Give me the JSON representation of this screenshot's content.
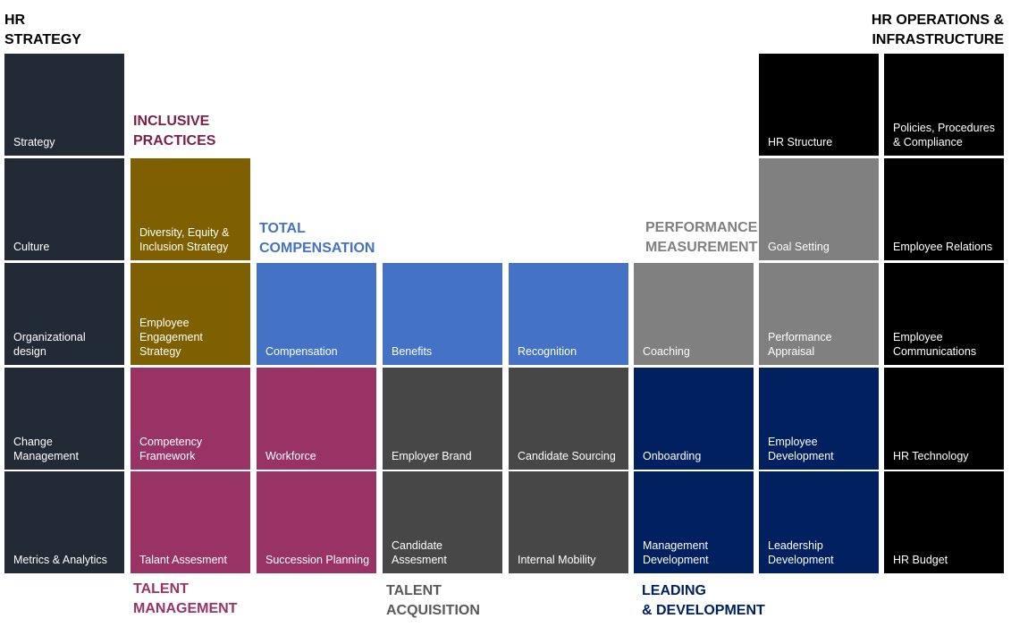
{
  "headers": {
    "hr_strategy": "HR\nSTRATEGY",
    "hr_operations": "HR OPERATIONS &\nINFRASTRUCTURE",
    "inclusive_practices": "INCLUSIVE\nPRACTICES",
    "total_compensation": "TOTAL\nCOMPENSATION",
    "performance_measurement": "PERFORMANCE\nMEASUREMENT",
    "talent_management": "TALENT\nMANAGEMENT",
    "talent_acquisition": "TALENT\nACQUISITION",
    "leading_development": "LEADING\n& DEVELOPMENT"
  },
  "colors": {
    "hr_strategy_header": "#000000",
    "hr_operations_header": "#000000",
    "inclusive_practices_header": "#7b1f4a",
    "total_compensation_header": "#4472c4",
    "performance_measurement_header": "#808080",
    "talent_management_header": "#993366",
    "talent_acquisition_header": "#595959",
    "leading_development_header": "#002060"
  },
  "tiles": {
    "strategy": "Strategy",
    "culture": "Culture",
    "organizational_design": "Organizational\ndesign",
    "change_management": "Change\nManagement",
    "metrics_analytics": "Metrics & Analytics",
    "dei_strategy": "Diversity, Equity &\nInclusion Strategy",
    "employee_engagement": "Employee\nEngagement\nStrategy",
    "competency_framework": "Competency\nFramework",
    "talant_assesment": "Talant Assesment",
    "compensation": "Compensation",
    "workforce": "Workforce",
    "succession_planning": "Succession Planning",
    "benefits": "Benefits",
    "employer_brand": "Employer Brand",
    "candidate_assesment": "Candidate\nAssesment",
    "recognition": "Recognition",
    "candidate_sourcing": "Candidate Sourcing",
    "internal_mobility": "Internal Mobility",
    "coaching": "Coaching",
    "onboarding": "Onboarding",
    "management_development": "Management\nDevelopment",
    "hr_structure": "HR Structure",
    "goal_setting": "Goal Setting",
    "performance_appraisal": "Performance\nAppraisal",
    "employee_development": "Employee\nDevelopment",
    "leadership_development": "Leadership\nDevelopment",
    "policies_procedures": "Policies, Procedures\n& Compliance",
    "employee_relations": "Employee Relations",
    "employee_communications": "Employee\nCommunications",
    "hr_technology": "HR Technology",
    "hr_budget": "HR Budget"
  }
}
